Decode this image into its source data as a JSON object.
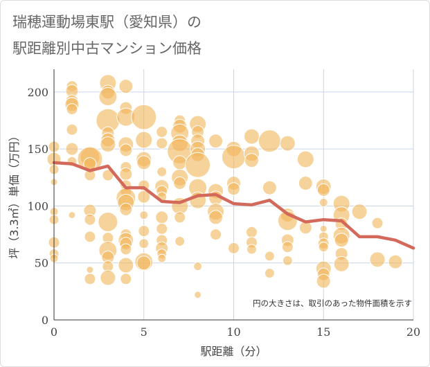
{
  "title_line1": "瑞穂運動場東駅（愛知県）の",
  "title_line2": "駅距離別中古マンション価格",
  "chart_data": {
    "type": "scatter",
    "xlabel": "駅距離（分）",
    "ylabel": "坪（3.3㎡）単価（万円）",
    "xlim": [
      0,
      20
    ],
    "ylim": [
      0,
      220
    ],
    "xticks": [
      0,
      5,
      10,
      15,
      20
    ],
    "yticks": [
      0,
      50,
      100,
      150,
      200
    ],
    "grid": true,
    "annotation": "円の大きさは、取引のあった物件面積を示す",
    "colors": {
      "bubble": "#f2b55a",
      "line": "#d2695a",
      "grid": "#c9d3e6"
    },
    "line": {
      "x": [
        0,
        1,
        2,
        3,
        4,
        5,
        6,
        7,
        8,
        9,
        10,
        11,
        12,
        13,
        14,
        15,
        16,
        17,
        18,
        19,
        20
      ],
      "y": [
        138,
        137,
        131,
        135,
        116,
        116,
        104,
        103,
        109,
        110,
        102,
        101,
        105,
        93,
        86,
        88,
        87,
        73,
        73,
        70,
        63
      ]
    },
    "bubbles": [
      {
        "x": 0,
        "y": 152,
        "r": 8
      },
      {
        "x": 0,
        "y": 141,
        "r": 10
      },
      {
        "x": 0,
        "y": 132,
        "r": 7
      },
      {
        "x": 0,
        "y": 121,
        "r": 5
      },
      {
        "x": 0,
        "y": 95,
        "r": 6
      },
      {
        "x": 0,
        "y": 88,
        "r": 7
      },
      {
        "x": 0,
        "y": 68,
        "r": 8
      },
      {
        "x": 0,
        "y": 58,
        "r": 7
      },
      {
        "x": 0,
        "y": 54,
        "r": 6
      },
      {
        "x": 1,
        "y": 205,
        "r": 8
      },
      {
        "x": 1,
        "y": 201,
        "r": 9
      },
      {
        "x": 1,
        "y": 192,
        "r": 9
      },
      {
        "x": 1,
        "y": 189,
        "r": 10
      },
      {
        "x": 1,
        "y": 185,
        "r": 8
      },
      {
        "x": 1,
        "y": 167,
        "r": 8
      },
      {
        "x": 1,
        "y": 150,
        "r": 9
      },
      {
        "x": 1,
        "y": 139,
        "r": 7
      },
      {
        "x": 1,
        "y": 92,
        "r": 5
      },
      {
        "x": 2,
        "y": 143,
        "r": 14
      },
      {
        "x": 2,
        "y": 141,
        "r": 18
      },
      {
        "x": 2,
        "y": 137,
        "r": 9
      },
      {
        "x": 2,
        "y": 127,
        "r": 8
      },
      {
        "x": 2,
        "y": 96,
        "r": 9
      },
      {
        "x": 2,
        "y": 88,
        "r": 8
      },
      {
        "x": 2,
        "y": 73,
        "r": 8
      },
      {
        "x": 2,
        "y": 44,
        "r": 5
      },
      {
        "x": 2,
        "y": 36,
        "r": 8
      },
      {
        "x": 3,
        "y": 208,
        "r": 12
      },
      {
        "x": 3,
        "y": 200,
        "r": 10
      },
      {
        "x": 3,
        "y": 196,
        "r": 13
      },
      {
        "x": 3,
        "y": 175,
        "r": 17
      },
      {
        "x": 3,
        "y": 164,
        "r": 9
      },
      {
        "x": 3,
        "y": 158,
        "r": 10
      },
      {
        "x": 3,
        "y": 154,
        "r": 11
      },
      {
        "x": 3,
        "y": 127,
        "r": 8
      },
      {
        "x": 3,
        "y": 86,
        "r": 14
      },
      {
        "x": 3,
        "y": 72,
        "r": 8
      },
      {
        "x": 3,
        "y": 61,
        "r": 13
      },
      {
        "x": 3,
        "y": 55,
        "r": 9
      },
      {
        "x": 3,
        "y": 47,
        "r": 8
      },
      {
        "x": 3,
        "y": 37,
        "r": 11
      },
      {
        "x": 4,
        "y": 205,
        "r": 10
      },
      {
        "x": 4,
        "y": 186,
        "r": 9
      },
      {
        "x": 4,
        "y": 178,
        "r": 13
      },
      {
        "x": 4,
        "y": 154,
        "r": 11
      },
      {
        "x": 4,
        "y": 149,
        "r": 9
      },
      {
        "x": 4,
        "y": 134,
        "r": 8
      },
      {
        "x": 4,
        "y": 128,
        "r": 9
      },
      {
        "x": 4,
        "y": 118,
        "r": 8
      },
      {
        "x": 4,
        "y": 113,
        "r": 8
      },
      {
        "x": 4,
        "y": 107,
        "r": 14
      },
      {
        "x": 4,
        "y": 103,
        "r": 12
      },
      {
        "x": 4,
        "y": 97,
        "r": 9
      },
      {
        "x": 4,
        "y": 75,
        "r": 8
      },
      {
        "x": 4,
        "y": 70,
        "r": 11
      },
      {
        "x": 4,
        "y": 67,
        "r": 9
      },
      {
        "x": 4,
        "y": 62,
        "r": 8
      },
      {
        "x": 4,
        "y": 48,
        "r": 11
      },
      {
        "x": 4,
        "y": 36,
        "r": 8
      },
      {
        "x": 5,
        "y": 178,
        "r": 18
      },
      {
        "x": 5,
        "y": 158,
        "r": 12
      },
      {
        "x": 5,
        "y": 141,
        "r": 11
      },
      {
        "x": 5,
        "y": 138,
        "r": 10
      },
      {
        "x": 5,
        "y": 118,
        "r": 8
      },
      {
        "x": 5,
        "y": 108,
        "r": 9
      },
      {
        "x": 5,
        "y": 92,
        "r": 6
      },
      {
        "x": 5,
        "y": 78,
        "r": 8
      },
      {
        "x": 5,
        "y": 67,
        "r": 7
      },
      {
        "x": 5,
        "y": 51,
        "r": 13
      },
      {
        "x": 5,
        "y": 50,
        "r": 10
      },
      {
        "x": 6,
        "y": 165,
        "r": 8
      },
      {
        "x": 6,
        "y": 155,
        "r": 8
      },
      {
        "x": 6,
        "y": 130,
        "r": 7
      },
      {
        "x": 6,
        "y": 117,
        "r": 10
      },
      {
        "x": 6,
        "y": 113,
        "r": 8
      },
      {
        "x": 6,
        "y": 108,
        "r": 7
      },
      {
        "x": 6,
        "y": 90,
        "r": 9
      },
      {
        "x": 6,
        "y": 80,
        "r": 8
      },
      {
        "x": 6,
        "y": 70,
        "r": 8
      },
      {
        "x": 6,
        "y": 63,
        "r": 9
      },
      {
        "x": 6,
        "y": 58,
        "r": 7
      },
      {
        "x": 6,
        "y": 54,
        "r": 6
      },
      {
        "x": 7,
        "y": 175,
        "r": 8
      },
      {
        "x": 7,
        "y": 170,
        "r": 10
      },
      {
        "x": 7,
        "y": 164,
        "r": 13
      },
      {
        "x": 7,
        "y": 155,
        "r": 12
      },
      {
        "x": 7,
        "y": 148,
        "r": 18
      },
      {
        "x": 7,
        "y": 138,
        "r": 10
      },
      {
        "x": 7,
        "y": 125,
        "r": 12
      },
      {
        "x": 7,
        "y": 120,
        "r": 9
      },
      {
        "x": 7,
        "y": 100,
        "r": 12
      },
      {
        "x": 7,
        "y": 90,
        "r": 8
      },
      {
        "x": 7,
        "y": 69,
        "r": 7
      },
      {
        "x": 8,
        "y": 172,
        "r": 12
      },
      {
        "x": 8,
        "y": 165,
        "r": 9
      },
      {
        "x": 8,
        "y": 157,
        "r": 10
      },
      {
        "x": 8,
        "y": 150,
        "r": 11
      },
      {
        "x": 8,
        "y": 145,
        "r": 10
      },
      {
        "x": 8,
        "y": 136,
        "r": 18
      },
      {
        "x": 8,
        "y": 116,
        "r": 13
      },
      {
        "x": 8,
        "y": 105,
        "r": 12
      },
      {
        "x": 8,
        "y": 47,
        "r": 6
      },
      {
        "x": 8,
        "y": 22,
        "r": 5
      },
      {
        "x": 9,
        "y": 157,
        "r": 10
      },
      {
        "x": 9,
        "y": 113,
        "r": 11
      },
      {
        "x": 9,
        "y": 107,
        "r": 10
      },
      {
        "x": 9,
        "y": 95,
        "r": 12
      },
      {
        "x": 9,
        "y": 90,
        "r": 10
      },
      {
        "x": 9,
        "y": 75,
        "r": 8
      },
      {
        "x": 10,
        "y": 150,
        "r": 11
      },
      {
        "x": 10,
        "y": 143,
        "r": 17
      },
      {
        "x": 10,
        "y": 120,
        "r": 10
      },
      {
        "x": 10,
        "y": 115,
        "r": 9
      },
      {
        "x": 10,
        "y": 63,
        "r": 8
      },
      {
        "x": 11,
        "y": 161,
        "r": 11
      },
      {
        "x": 11,
        "y": 146,
        "r": 11
      },
      {
        "x": 11,
        "y": 140,
        "r": 10
      },
      {
        "x": 11,
        "y": 77,
        "r": 8
      },
      {
        "x": 11,
        "y": 68,
        "r": 8
      },
      {
        "x": 11,
        "y": 62,
        "r": 7
      },
      {
        "x": 12,
        "y": 157,
        "r": 16
      },
      {
        "x": 12,
        "y": 116,
        "r": 10
      },
      {
        "x": 12,
        "y": 56,
        "r": 7
      },
      {
        "x": 12,
        "y": 41,
        "r": 7
      },
      {
        "x": 13,
        "y": 155,
        "r": 11
      },
      {
        "x": 13,
        "y": 92,
        "r": 10
      },
      {
        "x": 13,
        "y": 87,
        "r": 14
      },
      {
        "x": 13,
        "y": 70,
        "r": 9
      },
      {
        "x": 13,
        "y": 64,
        "r": 8
      },
      {
        "x": 13,
        "y": 52,
        "r": 7
      },
      {
        "x": 14,
        "y": 141,
        "r": 12
      },
      {
        "x": 14,
        "y": 120,
        "r": 10
      },
      {
        "x": 14,
        "y": 81,
        "r": 9
      },
      {
        "x": 15,
        "y": 117,
        "r": 11
      },
      {
        "x": 15,
        "y": 114,
        "r": 9
      },
      {
        "x": 15,
        "y": 103,
        "r": 6
      },
      {
        "x": 15,
        "y": 80,
        "r": 5
      },
      {
        "x": 15,
        "y": 73,
        "r": 7
      },
      {
        "x": 15,
        "y": 67,
        "r": 8
      },
      {
        "x": 15,
        "y": 64,
        "r": 7
      },
      {
        "x": 15,
        "y": 45,
        "r": 11
      },
      {
        "x": 15,
        "y": 40,
        "r": 9
      },
      {
        "x": 15,
        "y": 34,
        "r": 10
      },
      {
        "x": 16,
        "y": 102,
        "r": 12
      },
      {
        "x": 16,
        "y": 92,
        "r": 12
      },
      {
        "x": 16,
        "y": 84,
        "r": 9
      },
      {
        "x": 16,
        "y": 74,
        "r": 12
      },
      {
        "x": 16,
        "y": 70,
        "r": 10
      },
      {
        "x": 16,
        "y": 58,
        "r": 9
      },
      {
        "x": 16,
        "y": 49,
        "r": 11
      },
      {
        "x": 17,
        "y": 95,
        "r": 11
      },
      {
        "x": 18,
        "y": 85,
        "r": 8
      },
      {
        "x": 18,
        "y": 53,
        "r": 11
      },
      {
        "x": 19,
        "y": 51,
        "r": 10
      }
    ]
  }
}
